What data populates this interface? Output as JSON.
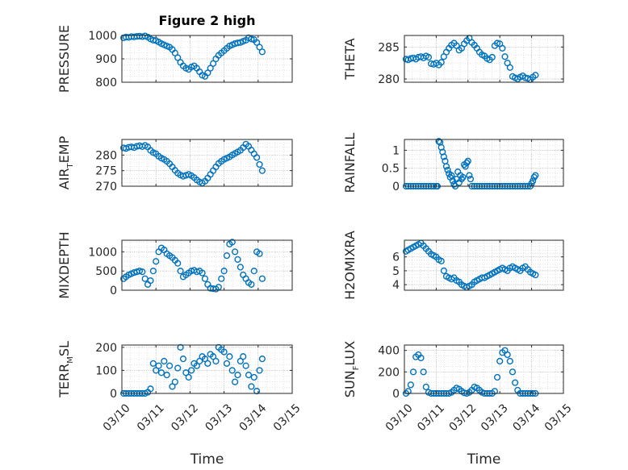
{
  "chart_data": [
    {
      "type": "scatter",
      "title": "Figure 2 high",
      "ylabel": "PRESSURE",
      "ylim": [
        800,
        1000
      ],
      "yticks": [
        800,
        900,
        1000
      ],
      "ytick_labels": [
        "800",
        "900",
        "1000"
      ],
      "xlim": [
        0,
        5
      ],
      "x": [
        0.05,
        0.12,
        0.2,
        0.28,
        0.36,
        0.44,
        0.52,
        0.6,
        0.68,
        0.76,
        0.84,
        0.92,
        1.0,
        1.08,
        1.16,
        1.24,
        1.32,
        1.4,
        1.48,
        1.56,
        1.64,
        1.72,
        1.8,
        1.88,
        1.96,
        2.04,
        2.12,
        2.2,
        2.28,
        2.36,
        2.44,
        2.52,
        2.6,
        2.68,
        2.76,
        2.84,
        2.92,
        3.0,
        3.08,
        3.16,
        3.24,
        3.32,
        3.4,
        3.48,
        3.56,
        3.64,
        3.72,
        3.8,
        3.88,
        3.96,
        4.04,
        4.12
      ],
      "y": [
        990,
        993,
        992,
        995,
        994,
        996,
        997,
        995,
        998,
        993,
        985,
        980,
        978,
        972,
        965,
        960,
        955,
        950,
        940,
        925,
        905,
        885,
        870,
        860,
        855,
        865,
        870,
        860,
        845,
        830,
        825,
        840,
        860,
        880,
        900,
        915,
        925,
        935,
        945,
        955,
        960,
        965,
        968,
        970,
        975,
        980,
        990,
        985,
        982,
        970,
        950,
        930
      ]
    },
    {
      "type": "scatter",
      "ylabel": "THETA",
      "ylim": [
        279.5,
        286.8
      ],
      "yticks": [
        280,
        285
      ],
      "ytick_labels": [
        "280",
        "285"
      ],
      "xlim": [
        0,
        5
      ],
      "x": [
        0.05,
        0.12,
        0.2,
        0.28,
        0.36,
        0.44,
        0.52,
        0.6,
        0.68,
        0.76,
        0.84,
        0.92,
        1.0,
        1.08,
        1.16,
        1.24,
        1.32,
        1.4,
        1.48,
        1.56,
        1.64,
        1.72,
        1.8,
        1.88,
        1.96,
        2.04,
        2.12,
        2.2,
        2.28,
        2.36,
        2.44,
        2.52,
        2.6,
        2.68,
        2.76,
        2.84,
        2.92,
        3.0,
        3.08,
        3.16,
        3.24,
        3.32,
        3.4,
        3.48,
        3.56,
        3.64,
        3.72,
        3.8,
        3.88,
        3.96,
        4.04,
        4.12
      ],
      "y": [
        283.1,
        283.0,
        283.2,
        283.3,
        283.1,
        283.4,
        283.5,
        283.3,
        283.6,
        283.4,
        282.4,
        282.3,
        282.5,
        282.2,
        282.6,
        283.5,
        284.2,
        284.8,
        285.3,
        285.6,
        285.2,
        284.5,
        284.8,
        285.5,
        286.0,
        286.4,
        285.7,
        285.3,
        284.8,
        284.2,
        283.8,
        283.6,
        283.2,
        283.0,
        283.4,
        285.2,
        285.6,
        285.5,
        284.8,
        283.5,
        282.5,
        281.8,
        280.4,
        280.2,
        280.0,
        280.3,
        280.5,
        280.2,
        280.1,
        279.9,
        280.3,
        280.6
      ]
    },
    {
      "type": "scatter",
      "ylabel": "AIR",
      "ylabel_sub": "T",
      "ylabel_rest": "EMP",
      "ylim": [
        270,
        285
      ],
      "yticks": [
        270,
        275,
        280
      ],
      "ytick_labels": [
        "270",
        "275",
        "280"
      ],
      "xlim": [
        0,
        5
      ],
      "x": [
        0.05,
        0.12,
        0.2,
        0.28,
        0.36,
        0.44,
        0.52,
        0.6,
        0.68,
        0.76,
        0.84,
        0.92,
        1.0,
        1.08,
        1.16,
        1.24,
        1.32,
        1.4,
        1.48,
        1.56,
        1.64,
        1.72,
        1.8,
        1.88,
        1.96,
        2.04,
        2.12,
        2.2,
        2.28,
        2.36,
        2.44,
        2.52,
        2.6,
        2.68,
        2.76,
        2.84,
        2.92,
        3.0,
        3.08,
        3.16,
        3.24,
        3.32,
        3.4,
        3.48,
        3.56,
        3.64,
        3.72,
        3.8,
        3.88,
        3.96,
        4.04,
        4.12
      ],
      "y": [
        282.3,
        282.1,
        282.5,
        282.6,
        282.4,
        282.8,
        283.0,
        282.7,
        283.1,
        282.6,
        281.5,
        280.8,
        280.4,
        279.6,
        279.0,
        278.6,
        278.0,
        277.2,
        276.2,
        275.1,
        274.2,
        273.6,
        273.2,
        273.5,
        273.8,
        273.4,
        272.8,
        272.0,
        271.4,
        271.0,
        271.6,
        272.6,
        273.8,
        275.0,
        276.2,
        277.3,
        278.0,
        278.6,
        279.0,
        279.4,
        280.0,
        280.5,
        281.0,
        281.5,
        282.4,
        283.5,
        282.8,
        281.6,
        280.4,
        279.2,
        277.0,
        275.0
      ]
    },
    {
      "type": "scatter",
      "ylabel": "RAINFALL",
      "ylim": [
        0,
        1.3
      ],
      "yticks": [
        0,
        0.5,
        1
      ],
      "ytick_labels": [
        "0",
        "0.5",
        "1"
      ],
      "xlim": [
        0,
        5
      ],
      "x": [
        0.05,
        0.12,
        0.2,
        0.28,
        0.36,
        0.44,
        0.52,
        0.6,
        0.68,
        0.76,
        0.84,
        0.92,
        1.0,
        1.04,
        1.08,
        1.12,
        1.16,
        1.2,
        1.24,
        1.28,
        1.32,
        1.36,
        1.4,
        1.44,
        1.48,
        1.52,
        1.56,
        1.6,
        1.64,
        1.68,
        1.72,
        1.76,
        1.8,
        1.84,
        1.88,
        1.92,
        1.96,
        2.0,
        2.04,
        2.08,
        2.12,
        2.2,
        2.28,
        2.36,
        2.44,
        2.52,
        2.6,
        2.68,
        2.76,
        2.84,
        2.92,
        3.0,
        3.08,
        3.16,
        3.24,
        3.32,
        3.4,
        3.48,
        3.56,
        3.64,
        3.72,
        3.8,
        3.88,
        3.96,
        4.0,
        4.04,
        4.08,
        4.12
      ],
      "y": [
        0,
        0,
        0,
        0,
        0,
        0,
        0,
        0,
        0,
        0,
        0,
        0,
        0,
        0,
        1.25,
        1.22,
        1.08,
        0.95,
        0.82,
        0.7,
        0.55,
        0.45,
        0.35,
        0.25,
        0.3,
        0.15,
        0.05,
        0,
        0.2,
        0.4,
        0.1,
        0.3,
        0.2,
        0.25,
        0.6,
        0.55,
        0.65,
        0.7,
        0.3,
        0.2,
        0,
        0,
        0,
        0,
        0,
        0,
        0,
        0,
        0,
        0,
        0,
        0,
        0,
        0,
        0,
        0,
        0,
        0,
        0,
        0,
        0,
        0,
        0,
        0,
        0.08,
        0.15,
        0.25,
        0.3
      ]
    },
    {
      "type": "scatter",
      "ylabel": "MIXDEPTH",
      "ylim": [
        0,
        1300
      ],
      "yticks": [
        0,
        500,
        1000
      ],
      "ytick_labels": [
        "0",
        "500",
        "1000"
      ],
      "xlim": [
        0,
        5
      ],
      "x": [
        0.05,
        0.12,
        0.2,
        0.28,
        0.36,
        0.44,
        0.52,
        0.6,
        0.68,
        0.76,
        0.84,
        0.92,
        1.0,
        1.08,
        1.16,
        1.24,
        1.32,
        1.4,
        1.48,
        1.56,
        1.64,
        1.72,
        1.8,
        1.88,
        1.96,
        2.04,
        2.12,
        2.2,
        2.28,
        2.36,
        2.44,
        2.52,
        2.6,
        2.68,
        2.76,
        2.84,
        2.92,
        3.0,
        3.08,
        3.16,
        3.24,
        3.32,
        3.4,
        3.48,
        3.56,
        3.64,
        3.72,
        3.8,
        3.88,
        3.96,
        4.04,
        4.12
      ],
      "y": [
        300,
        350,
        400,
        430,
        460,
        480,
        500,
        480,
        300,
        150,
        250,
        500,
        750,
        1000,
        1100,
        1050,
        950,
        900,
        850,
        780,
        700,
        500,
        350,
        400,
        450,
        500,
        520,
        480,
        500,
        450,
        300,
        150,
        50,
        40,
        30,
        80,
        300,
        500,
        900,
        1200,
        1250,
        1000,
        800,
        600,
        400,
        300,
        200,
        150,
        500,
        1000,
        950,
        300
      ]
    },
    {
      "type": "scatter",
      "ylabel": "H2OMIXRA",
      "ylim": [
        3.6,
        7.2
      ],
      "yticks": [
        4,
        5,
        6
      ],
      "ytick_labels": [
        "4",
        "5",
        "6"
      ],
      "xlim": [
        0,
        5
      ],
      "x": [
        0.05,
        0.12,
        0.2,
        0.28,
        0.36,
        0.44,
        0.52,
        0.6,
        0.68,
        0.76,
        0.84,
        0.92,
        1.0,
        1.08,
        1.16,
        1.24,
        1.32,
        1.4,
        1.48,
        1.56,
        1.64,
        1.72,
        1.8,
        1.88,
        1.96,
        2.04,
        2.12,
        2.2,
        2.28,
        2.36,
        2.44,
        2.52,
        2.6,
        2.68,
        2.76,
        2.84,
        2.92,
        3.0,
        3.08,
        3.16,
        3.24,
        3.32,
        3.4,
        3.48,
        3.56,
        3.64,
        3.72,
        3.8,
        3.88,
        3.96,
        4.04,
        4.12
      ],
      "y": [
        6.4,
        6.5,
        6.6,
        6.7,
        6.8,
        6.9,
        7.0,
        6.8,
        6.6,
        6.4,
        6.2,
        6.1,
        6.0,
        5.8,
        5.7,
        5.0,
        4.6,
        4.5,
        4.4,
        4.5,
        4.3,
        4.2,
        4.0,
        3.9,
        3.8,
        3.9,
        4.0,
        4.2,
        4.3,
        4.4,
        4.5,
        4.5,
        4.6,
        4.7,
        4.8,
        4.9,
        5.0,
        5.1,
        5.2,
        5.1,
        5.0,
        5.2,
        5.3,
        5.2,
        5.1,
        5.0,
        5.2,
        5.3,
        5.1,
        4.9,
        4.8,
        4.7
      ]
    },
    {
      "type": "scatter",
      "ylabel": "TERR",
      "ylabel_sub": "M",
      "ylabel_rest": "SL",
      "ylim": [
        0,
        210
      ],
      "yticks": [
        0,
        100,
        200
      ],
      "ytick_labels": [
        "0",
        "100",
        "200"
      ],
      "xlim": [
        0,
        5
      ],
      "x": [
        0.05,
        0.12,
        0.2,
        0.28,
        0.36,
        0.44,
        0.52,
        0.6,
        0.68,
        0.76,
        0.84,
        0.92,
        1.0,
        1.08,
        1.16,
        1.24,
        1.32,
        1.4,
        1.48,
        1.56,
        1.64,
        1.72,
        1.8,
        1.88,
        1.96,
        2.04,
        2.12,
        2.2,
        2.28,
        2.36,
        2.44,
        2.52,
        2.6,
        2.68,
        2.76,
        2.84,
        2.92,
        3.0,
        3.08,
        3.16,
        3.24,
        3.32,
        3.4,
        3.48,
        3.56,
        3.64,
        3.72,
        3.8,
        3.88,
        3.96,
        4.04,
        4.12
      ],
      "y": [
        0,
        0,
        0,
        0,
        0,
        0,
        0,
        0,
        0,
        5,
        20,
        130,
        100,
        120,
        90,
        140,
        80,
        120,
        30,
        50,
        110,
        200,
        150,
        90,
        70,
        100,
        130,
        120,
        140,
        160,
        150,
        130,
        170,
        160,
        140,
        200,
        190,
        180,
        130,
        160,
        100,
        50,
        80,
        140,
        160,
        120,
        80,
        30,
        70,
        10,
        100,
        150
      ]
    },
    {
      "type": "scatter",
      "ylabel": "SUN",
      "ylabel_sub": "F",
      "ylabel_rest": "LUX",
      "ylim": [
        0,
        450
      ],
      "yticks": [
        0,
        200,
        400
      ],
      "ytick_labels": [
        "0",
        "200",
        "400"
      ],
      "xlim": [
        0,
        5
      ],
      "xticks": [
        0,
        1,
        2,
        3,
        4,
        5
      ],
      "xtick_labels": [
        "03/10",
        "03/11",
        "03/12",
        "03/13",
        "03/14",
        "03/15"
      ],
      "x": [
        0.05,
        0.12,
        0.2,
        0.28,
        0.36,
        0.44,
        0.52,
        0.6,
        0.68,
        0.76,
        0.84,
        0.92,
        1.0,
        1.08,
        1.16,
        1.24,
        1.32,
        1.4,
        1.48,
        1.56,
        1.64,
        1.72,
        1.8,
        1.88,
        1.96,
        2.04,
        2.12,
        2.2,
        2.28,
        2.36,
        2.44,
        2.52,
        2.6,
        2.68,
        2.76,
        2.84,
        2.92,
        3.0,
        3.08,
        3.16,
        3.24,
        3.32,
        3.4,
        3.48,
        3.56,
        3.64,
        3.72,
        3.8,
        3.88,
        3.96,
        4.04,
        4.12
      ],
      "y": [
        0,
        20,
        80,
        200,
        340,
        360,
        330,
        200,
        60,
        10,
        0,
        0,
        0,
        0,
        0,
        0,
        0,
        0,
        10,
        30,
        50,
        40,
        20,
        5,
        0,
        10,
        30,
        60,
        50,
        30,
        10,
        0,
        0,
        0,
        0,
        20,
        150,
        300,
        380,
        400,
        360,
        300,
        200,
        100,
        30,
        0,
        0,
        0,
        0,
        0,
        0,
        0
      ]
    }
  ],
  "axes_common": {
    "xlabel": "Time",
    "xticks": [
      0,
      1,
      2,
      3,
      4,
      5
    ],
    "xtick_labels": [
      "03/10",
      "03/11",
      "03/12",
      "03/13",
      "03/14",
      "03/15"
    ],
    "marker_color": "#0072BD",
    "grid": true
  }
}
